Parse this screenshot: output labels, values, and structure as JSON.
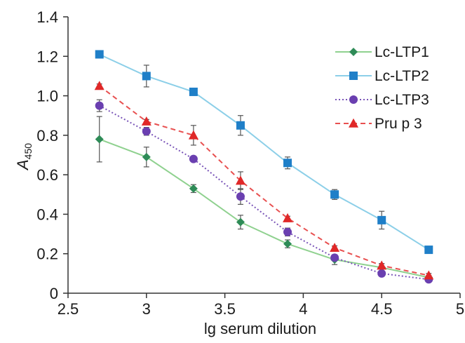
{
  "chart_data": {
    "type": "line",
    "xlabel": "lg serum dilution",
    "ylabel": {
      "base": "A",
      "subscript": "450"
    },
    "xlim": [
      2.5,
      5
    ],
    "ylim": [
      0,
      1.4
    ],
    "x_ticks": [
      2.5,
      3,
      3.5,
      4,
      4.5,
      5
    ],
    "x_tick_labels": [
      "2.5",
      "3",
      "3.5",
      "4",
      "4.5",
      "5"
    ],
    "y_ticks": [
      0,
      0.2,
      0.4,
      0.6,
      0.8,
      1.0,
      1.2,
      1.4
    ],
    "y_tick_labels": [
      "0",
      "0.2",
      "0.4",
      "0.6",
      "0.8",
      "1.0",
      "1.2",
      "1.4"
    ],
    "grid": false,
    "legend": "top-right",
    "x": [
      2.7,
      3.0,
      3.3,
      3.6,
      3.9,
      4.2,
      4.5,
      4.8
    ],
    "series": [
      {
        "name": "Lc-LTP1",
        "marker": "diamond",
        "line": "solid",
        "line_color": "#8fd18f",
        "marker_color": "#2e8b57",
        "values": [
          0.78,
          0.69,
          0.53,
          0.36,
          0.25,
          0.17,
          0.13,
          0.08
        ],
        "errors": [
          0.115,
          0.05,
          0.02,
          0.035,
          0.02,
          0.025,
          0.02,
          0.01
        ]
      },
      {
        "name": "Lc-LTP2",
        "marker": "square",
        "line": "solid",
        "line_color": "#8ccfe8",
        "marker_color": "#1f7fc8",
        "values": [
          1.21,
          1.1,
          1.02,
          0.85,
          0.66,
          0.5,
          0.37,
          0.22
        ],
        "errors": [
          0.01,
          0.055,
          0.01,
          0.05,
          0.03,
          0.025,
          0.045,
          0.01
        ]
      },
      {
        "name": "Lc-LTP3",
        "marker": "circle",
        "line": "dotted",
        "line_color": "#7a55b8",
        "marker_color": "#6a3fb0",
        "values": [
          0.95,
          0.82,
          0.68,
          0.49,
          0.31,
          0.18,
          0.1,
          0.07
        ],
        "errors": [
          0.03,
          0.02,
          0.01,
          0.04,
          0.02,
          0.01,
          0.01,
          0.01
        ]
      },
      {
        "name": "Pru p 3",
        "marker": "triangle",
        "line": "dashed",
        "line_color": "#e85050",
        "marker_color": "#e02828",
        "values": [
          1.05,
          0.87,
          0.8,
          0.57,
          0.38,
          0.23,
          0.14,
          0.09
        ],
        "errors": [
          0.01,
          0.01,
          0.05,
          0.045,
          0.01,
          0.01,
          0.01,
          0.01
        ]
      }
    ]
  }
}
